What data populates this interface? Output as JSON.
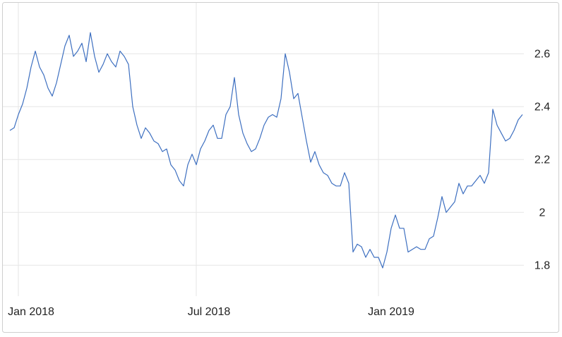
{
  "chart_data": {
    "type": "line",
    "categories": [
      null,
      null,
      "Jan 2018",
      null,
      null,
      null,
      null,
      null,
      null,
      null,
      null,
      null,
      null,
      null,
      null,
      null,
      null,
      null,
      null,
      null,
      null,
      null,
      null,
      null,
      null,
      null,
      null,
      null,
      null,
      null,
      null,
      null,
      null,
      null,
      null,
      null,
      null,
      null,
      null,
      null,
      null,
      null,
      null,
      null,
      "Jul 2018",
      null,
      null,
      null,
      null,
      null,
      null,
      null,
      null,
      null,
      null,
      null,
      null,
      null,
      null,
      null,
      null,
      null,
      null,
      null,
      null,
      null,
      null,
      null,
      null,
      null,
      null,
      null,
      null,
      null,
      null,
      null,
      null,
      null,
      null,
      null,
      null,
      null,
      null,
      null,
      null,
      null,
      null,
      "Jan 2019",
      null,
      null,
      null,
      null,
      null,
      null,
      null,
      null,
      null,
      null,
      null,
      null,
      null,
      null,
      null,
      null,
      null,
      null,
      null,
      null,
      null,
      null,
      null,
      null,
      null,
      null,
      null,
      null,
      null,
      null,
      null,
      null,
      null,
      null
    ],
    "series": [
      {
        "color": "#3d6fc0",
        "values": [
          2.31,
          2.32,
          2.37,
          2.41,
          2.47,
          2.55,
          2.61,
          2.55,
          2.52,
          2.47,
          2.44,
          2.49,
          2.56,
          2.63,
          2.67,
          2.59,
          2.61,
          2.64,
          2.57,
          2.68,
          2.59,
          2.53,
          2.56,
          2.6,
          2.57,
          2.55,
          2.61,
          2.59,
          2.56,
          2.4,
          2.33,
          2.28,
          2.32,
          2.3,
          2.27,
          2.26,
          2.23,
          2.24,
          2.18,
          2.16,
          2.12,
          2.1,
          2.18,
          2.22,
          2.18,
          2.24,
          2.27,
          2.31,
          2.33,
          2.28,
          2.28,
          2.37,
          2.4,
          2.51,
          2.37,
          2.3,
          2.26,
          2.23,
          2.24,
          2.28,
          2.33,
          2.36,
          2.37,
          2.36,
          2.43,
          2.6,
          2.53,
          2.43,
          2.45,
          2.36,
          2.27,
          2.19,
          2.23,
          2.18,
          2.15,
          2.14,
          2.11,
          2.1,
          2.1,
          2.15,
          2.11,
          1.85,
          1.88,
          1.87,
          1.83,
          1.86,
          1.83,
          1.83,
          1.79,
          1.85,
          1.94,
          1.99,
          1.94,
          1.94,
          1.85,
          1.86,
          1.87,
          1.86,
          1.86,
          1.9,
          1.91,
          1.98,
          2.06,
          2.0,
          2.02,
          2.04,
          2.11,
          2.07,
          2.1,
          2.1,
          2.12,
          2.14,
          2.11,
          2.15,
          2.39,
          2.33,
          2.3,
          2.27,
          2.28,
          2.31,
          2.35,
          2.37
        ]
      }
    ],
    "ylim": [
      1.71,
      2.79
    ],
    "yticks": [
      1.8,
      2,
      2.2,
      2.4,
      2.6
    ],
    "grid": true
  }
}
